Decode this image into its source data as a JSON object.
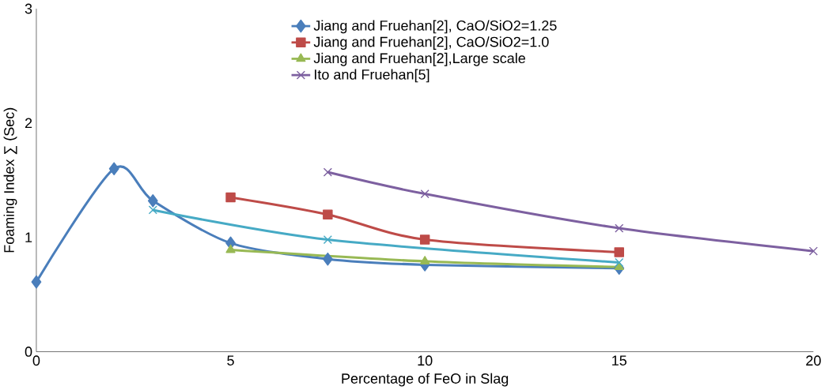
{
  "chart_data": {
    "type": "line",
    "xlabel": "Percentage of FeO in Slag",
    "ylabel": "Foaming Index ∑ (Sec)",
    "xlim": [
      0,
      20
    ],
    "ylim": [
      0,
      3
    ],
    "xticks": [
      0,
      5,
      10,
      15,
      20
    ],
    "yticks": [
      0,
      1,
      2,
      3
    ],
    "grid": false,
    "legend": "top",
    "line_style": "solid",
    "series": [
      {
        "name": "Jiang and Fruehan[2], CaO/SiO2=1.25",
        "color": "#4a7ebb",
        "marker": "diamond",
        "x": [
          0,
          2,
          3,
          5,
          7.5,
          10,
          15
        ],
        "values": [
          0.61,
          1.6,
          1.32,
          0.95,
          0.81,
          0.76,
          0.73
        ]
      },
      {
        "name": "Jiang and Fruehan[2], CaO/SiO2=1.0",
        "color": "#be4b48",
        "marker": "square",
        "x": [
          5,
          7.5,
          10,
          15
        ],
        "values": [
          1.35,
          1.2,
          0.98,
          0.87
        ]
      },
      {
        "name": "Jiang and Fruehan[2],Large scale",
        "color": "#98b954",
        "marker": "triangle",
        "x": [
          5,
          10,
          15
        ],
        "values": [
          0.89,
          0.79,
          0.74
        ]
      },
      {
        "name": "Ito and Fruehan[5]",
        "color": "#7d60a0",
        "marker": "cross",
        "x": [
          7.5,
          10,
          15,
          20
        ],
        "values": [
          1.57,
          1.38,
          1.08,
          0.88
        ]
      },
      {
        "color": "#46aac5",
        "marker": "cross",
        "x": [
          3,
          7.5,
          15
        ],
        "values": [
          1.24,
          0.98,
          0.78
        ]
      }
    ]
  }
}
